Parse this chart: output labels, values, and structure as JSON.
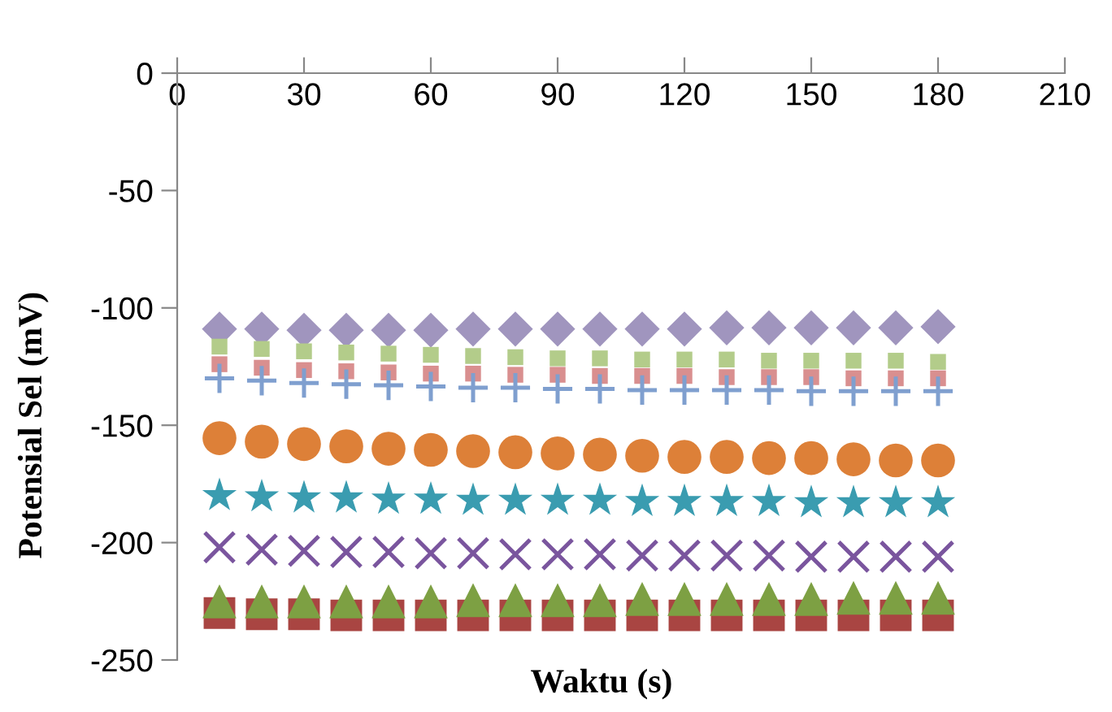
{
  "chart_data": {
    "type": "scatter",
    "xlabel": "Waktu (s)",
    "ylabel": "Potensial Sel (mV)",
    "x": [
      10,
      20,
      30,
      40,
      50,
      60,
      70,
      80,
      90,
      100,
      110,
      120,
      130,
      140,
      150,
      160,
      170,
      180
    ],
    "xlim": [
      0,
      210
    ],
    "xticks": [
      0,
      30,
      60,
      90,
      120,
      150,
      180,
      210
    ],
    "ylim": [
      -250,
      0
    ],
    "yticks": [
      -250,
      -200,
      -150,
      -100,
      -50,
      0
    ],
    "grid": false,
    "legend": false,
    "series": [
      {
        "color": "#a095be",
        "marker": "diamond",
        "values": [
          -109,
          -109,
          -109.5,
          -109.5,
          -109.5,
          -109.5,
          -109,
          -109,
          -109,
          -109,
          -109,
          -109,
          -108.5,
          -108.5,
          -108.5,
          -108.5,
          -108.5,
          -108
        ]
      },
      {
        "color": "#b3cc8a",
        "marker": "square",
        "values": [
          -116.5,
          -117.5,
          -118.5,
          -119,
          -119.5,
          -120,
          -120.5,
          -121,
          -121.5,
          -121.5,
          -122,
          -122,
          -122,
          -122.5,
          -122.5,
          -122.5,
          -122.5,
          -123
        ]
      },
      {
        "color": "#d98f8f",
        "marker": "square",
        "values": [
          -124,
          -125.5,
          -126.5,
          -127,
          -127.5,
          -128,
          -128,
          -128.5,
          -128.5,
          -129,
          -129,
          -129,
          -129.5,
          -129.5,
          -129.5,
          -130,
          -130,
          -130
        ]
      },
      {
        "color": "#7f9fcf",
        "marker": "plus",
        "values": [
          -130,
          -131,
          -132,
          -132.5,
          -133,
          -133.5,
          -134,
          -134,
          -134.5,
          -134.5,
          -135,
          -135,
          -135,
          -135,
          -135.5,
          -135.5,
          -135.5,
          -135.5
        ]
      },
      {
        "color": "#dd8038",
        "marker": "circle",
        "values": [
          -155.5,
          -157,
          -158,
          -159,
          -160,
          -160.5,
          -161,
          -161.5,
          -162,
          -162.5,
          -163,
          -163.5,
          -163.5,
          -164,
          -164,
          -164.5,
          -165,
          -165
        ]
      },
      {
        "color": "#3a9cb0",
        "marker": "star",
        "values": [
          -180,
          -180.5,
          -181,
          -181,
          -181.5,
          -181.5,
          -182,
          -182,
          -182,
          -182,
          -182.5,
          -182.5,
          -182.5,
          -182.5,
          -183,
          -183,
          -183,
          -183
        ]
      },
      {
        "color": "#7a559e",
        "marker": "cross",
        "values": [
          -202,
          -203,
          -203.5,
          -204,
          -204,
          -204.5,
          -204.5,
          -205,
          -205,
          -205,
          -205.5,
          -205.5,
          -205.5,
          -205.5,
          -206,
          -206,
          -206,
          -206
        ]
      },
      {
        "color": "#a94542",
        "marker": "square",
        "values": [
          -230,
          -230.5,
          -230.5,
          -231,
          -231,
          -231,
          -231,
          -231,
          -231,
          -231,
          -231,
          -231,
          -231,
          -231,
          -231,
          -231,
          -231,
          -231
        ]
      },
      {
        "color": "#7da043",
        "marker": "triangle",
        "values": [
          -225,
          -225,
          -225,
          -225,
          -225,
          -225,
          -224.5,
          -224.5,
          -224.5,
          -224.5,
          -224,
          -224,
          -224,
          -224,
          -224,
          -223.5,
          -223.5,
          -223.5
        ]
      }
    ]
  }
}
